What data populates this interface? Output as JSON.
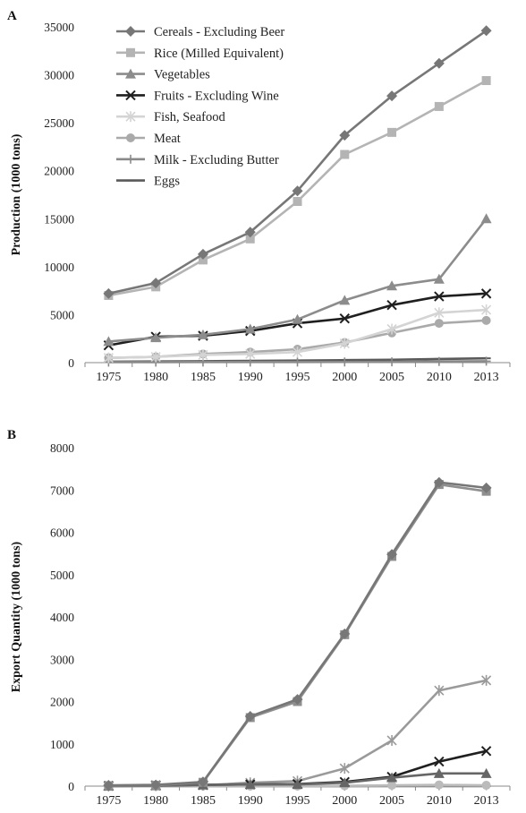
{
  "chart_data": [
    {
      "type": "line",
      "panel_label": "A",
      "ylabel": "Production (1000 tons)",
      "xlabel": "",
      "title": "",
      "categories": [
        "1975",
        "1980",
        "1985",
        "1990",
        "1995",
        "2000",
        "2005",
        "2010",
        "2013"
      ],
      "ylim": [
        0,
        35000
      ],
      "yticks": [
        0,
        5000,
        10000,
        15000,
        20000,
        25000,
        30000,
        35000
      ],
      "grid": false,
      "legend": "top-left",
      "series": [
        {
          "name": "Cereals - Excluding Beer",
          "color": "#777777",
          "marker": "diamond",
          "values": [
            7200,
            8300,
            11300,
            13600,
            17900,
            23700,
            27800,
            31200,
            34600
          ]
        },
        {
          "name": "Rice (Milled Equivalent)",
          "color": "#b4b4b4",
          "marker": "square",
          "values": [
            7000,
            7900,
            10700,
            12900,
            16800,
            21700,
            24000,
            26700,
            29400
          ]
        },
        {
          "name": "Vegetables",
          "color": "#8c8c8c",
          "marker": "triangle",
          "values": [
            2200,
            2600,
            2900,
            3500,
            4500,
            6500,
            8000,
            8700,
            15000
          ]
        },
        {
          "name": "Fruits - Excluding Wine",
          "color": "#1f1f1f",
          "marker": "x",
          "values": [
            1800,
            2700,
            2800,
            3300,
            4100,
            4600,
            6000,
            6900,
            7200
          ]
        },
        {
          "name": "Fish, Seafood",
          "color": "#d4d4d4",
          "marker": "star",
          "values": [
            500,
            600,
            800,
            900,
            1100,
            2000,
            3500,
            5200,
            5500
          ]
        },
        {
          "name": "Meat",
          "color": "#aaaaaa",
          "marker": "circle",
          "values": [
            500,
            600,
            900,
            1100,
            1400,
            2100,
            3100,
            4100,
            4400
          ]
        },
        {
          "name": "Milk - Excluding Butter",
          "color": "#8a8a8a",
          "marker": "plus",
          "values": [
            50,
            50,
            60,
            60,
            60,
            70,
            80,
            120,
            150
          ]
        },
        {
          "name": "Eggs",
          "color": "#5a5a5a",
          "marker": "dash",
          "values": [
            100,
            120,
            150,
            180,
            220,
            260,
            300,
            380,
            450
          ]
        }
      ]
    },
    {
      "type": "line",
      "panel_label": "B",
      "ylabel": "Export Quantity (1000 tons)",
      "xlabel": "",
      "title": "",
      "categories": [
        "1975",
        "1980",
        "1985",
        "1990",
        "1995",
        "2000",
        "2005",
        "2010",
        "2013"
      ],
      "ylim": [
        0,
        8000
      ],
      "yticks": [
        0,
        1000,
        2000,
        3000,
        4000,
        5000,
        6000,
        7000,
        8000
      ],
      "grid": false,
      "legend": "none",
      "series": [
        {
          "name": "Cereals - Excluding Beer",
          "color": "#777777",
          "marker": "diamond",
          "values": [
            20,
            30,
            100,
            1650,
            2050,
            3600,
            5480,
            7180,
            7050
          ]
        },
        {
          "name": "Rice (Milled Equivalent)",
          "color": "#8f8f8f",
          "marker": "square",
          "values": [
            10,
            20,
            90,
            1620,
            2000,
            3580,
            5430,
            7130,
            6970
          ]
        },
        {
          "name": "Vegetables",
          "color": "#666666",
          "marker": "triangle",
          "values": [
            0,
            10,
            30,
            40,
            40,
            80,
            200,
            300,
            300
          ]
        },
        {
          "name": "Fruits - Excluding Wine",
          "color": "#1f1f1f",
          "marker": "x",
          "values": [
            10,
            20,
            30,
            40,
            50,
            100,
            220,
            580,
            830
          ]
        },
        {
          "name": "Fish, Seafood",
          "color": "#9a9a9a",
          "marker": "star",
          "values": [
            0,
            10,
            20,
            80,
            120,
            420,
            1080,
            2260,
            2500
          ]
        },
        {
          "name": "Meat",
          "color": "#bbbbbb",
          "marker": "circle",
          "values": [
            0,
            0,
            0,
            0,
            0,
            10,
            20,
            30,
            20
          ]
        },
        {
          "name": "Milk - Excluding Butter",
          "color": "#9a9a9a",
          "marker": "plus",
          "values": [
            0,
            0,
            0,
            0,
            0,
            0,
            10,
            10,
            10
          ]
        },
        {
          "name": "Eggs",
          "color": "#5a5a5a",
          "marker": "dash",
          "values": [
            0,
            0,
            0,
            0,
            0,
            0,
            0,
            0,
            0
          ]
        }
      ]
    }
  ]
}
